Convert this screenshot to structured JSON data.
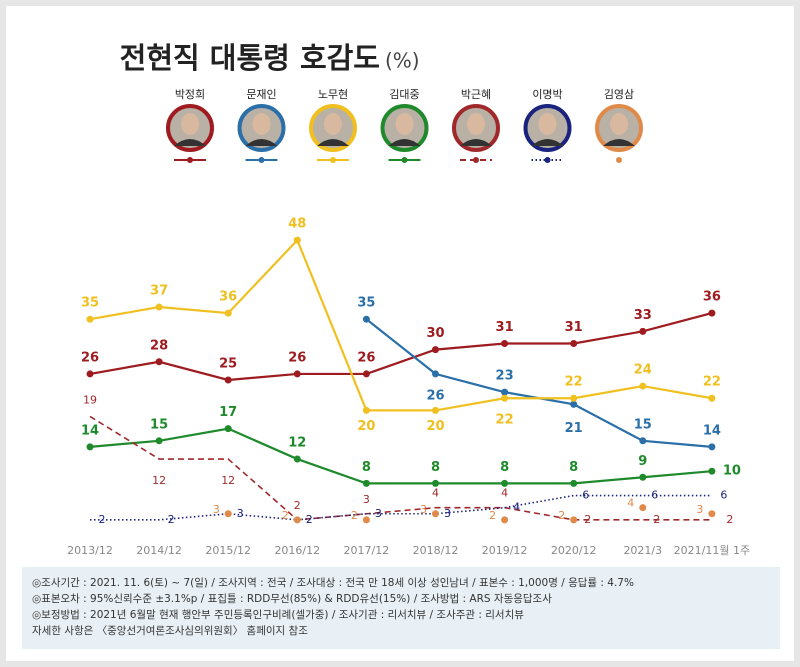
{
  "chart_data": {
    "type": "line",
    "title": "전현직 대통령 호감도",
    "unit": "(%)",
    "categories": [
      "2013/12",
      "2014/12",
      "2015/12",
      "2016/12",
      "2017/12",
      "2018/12",
      "2019/12",
      "2020/12",
      "2021/3",
      "2021/11월 1주"
    ],
    "series": [
      {
        "name": "박정희",
        "color": "#9e1b20",
        "style": "solid",
        "values": [
          26,
          28,
          25,
          26,
          26,
          30,
          31,
          31,
          33,
          36
        ]
      },
      {
        "name": "문재인",
        "color": "#2a6fa8",
        "style": "solid",
        "values": [
          null,
          null,
          null,
          null,
          35,
          26,
          23,
          21,
          15,
          14
        ]
      },
      {
        "name": "노무현",
        "color": "#f0c020",
        "style": "solid",
        "values": [
          35,
          37,
          36,
          48,
          20,
          20,
          22,
          22,
          24,
          22
        ]
      },
      {
        "name": "김대중",
        "color": "#1f8a2c",
        "style": "solid",
        "values": [
          14,
          15,
          17,
          12,
          8,
          8,
          8,
          8,
          9,
          10
        ]
      },
      {
        "name": "박근혜",
        "color": "#a0282a",
        "style": "dashed",
        "values": [
          19,
          12,
          12,
          2,
          3,
          4,
          4,
          2,
          2,
          2
        ]
      },
      {
        "name": "이명박",
        "color": "#1a237e",
        "style": "dotted",
        "values": [
          2,
          2,
          3,
          2,
          3,
          3,
          4,
          6,
          6,
          6
        ]
      },
      {
        "name": "김영삼",
        "color": "#e08a4a",
        "style": "markers",
        "values": [
          null,
          null,
          3,
          2,
          2,
          3,
          2,
          2,
          4,
          3
        ]
      }
    ]
  },
  "notes": [
    "◎조사기간 : 2021. 11. 6(토) ~ 7(일) / 조사지역 : 전국 / 조사대상 : 전국 만 18세 이상 성인남녀 / 표본수 : 1,000명 / 응답률 : 4.7%",
    "◎표본오차 : 95%신뢰수준 ±3.1%p / 표집틀 : RDD무선(85%) & RDD유선(15%) / 조사방법 : ARS 자동응답조사",
    "◎보정방법 : 2021년 6월말 현재 행안부 주민등록인구비례(셀가중) / 조사기관 : 리서치뷰 / 조사주관 : 리서치뷰",
    "자세한 사항은 〈중앙선거여론조사심의위원회〉 홈페이지 참조"
  ]
}
